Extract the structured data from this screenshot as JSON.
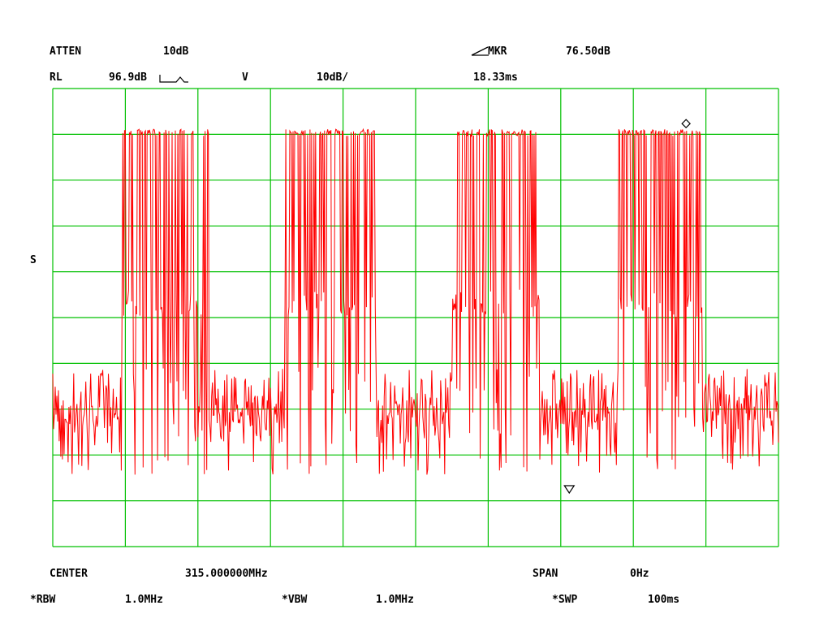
{
  "header": {
    "atten_label": "ATTEN",
    "atten_value": "10dB",
    "mkr_label": "MKR",
    "mkr_value": "76.50dB",
    "rl_label": "RL",
    "rl_value": "96.9dB",
    "v_label": "V",
    "scale_value": "10dB/",
    "mkr_time": "18.33ms"
  },
  "side_label": "S",
  "footer": {
    "center_label": "CENTER",
    "center_value": "315.000000MHz",
    "span_label": "SPAN",
    "span_value": "0Hz",
    "rbw_label": "*RBW",
    "rbw_value": "1.0MHz",
    "vbw_label": "*VBW",
    "vbw_value": "1.0MHz",
    "swp_label": "*SWP",
    "swp_value": "100ms"
  },
  "colors": {
    "grid": "#00c000",
    "trace": "#ff0000",
    "text": "#000000"
  },
  "chart_data": {
    "type": "line",
    "sweep_ms": 100,
    "divisions": 10,
    "ref_level_db": 96.9,
    "scale_db_per_div": 10,
    "marker_delta_db": 76.5,
    "marker_delta_ms": 18.33,
    "bursts": [
      {
        "start_ms": 9.5,
        "end_ms": 21.5
      },
      {
        "start_ms": 32.0,
        "end_ms": 44.5
      },
      {
        "start_ms": 55.0,
        "end_ms": 67.0
      },
      {
        "start_ms": 78.0,
        "end_ms": 89.5
      }
    ],
    "burst_top_db": 88.0,
    "burst_mid_db": 53.0,
    "noise_band_db": [
      19.0,
      36.0
    ],
    "noise_floor_db": 12.5
  }
}
